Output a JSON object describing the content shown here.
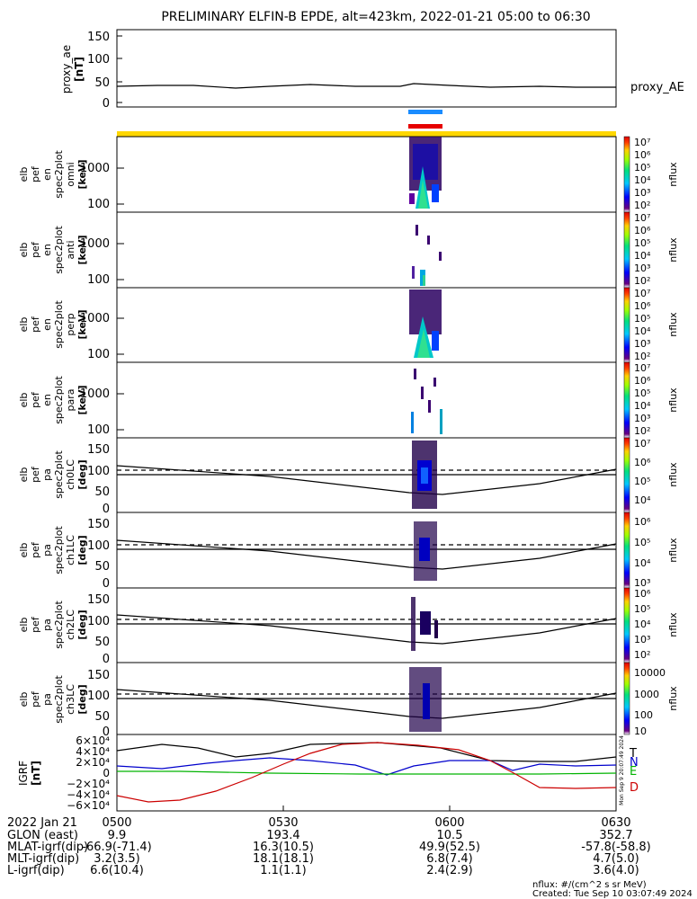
{
  "title": "PRELIMINARY ELFIN-B EPDE, alt=423km, 2022-01-21 05:00 to 06:30",
  "colors": {
    "ae_bar": "#1a8cff",
    "epd_bar": "#e60000",
    "status_bar": "#ffd700",
    "line": "#000000",
    "bfield_T": "#000000",
    "bfield_N": "#0000cc",
    "bfield_E": "#00b300",
    "bfield_D": "#cc0000"
  },
  "panels": {
    "ae": {
      "label": [
        "proxy_ae",
        "[nT]"
      ],
      "series_name": "proxy_AE",
      "ticks": [
        "150",
        "100",
        "50",
        "0"
      ]
    },
    "omni": {
      "label": [
        "elb",
        "pef",
        "en",
        "spec2plot",
        "omni",
        "[keV]"
      ],
      "ticks": [
        "1000",
        "100"
      ]
    },
    "anti": {
      "label": [
        "elb",
        "pef",
        "en",
        "spec2plot",
        "anti",
        "[keV]"
      ],
      "ticks": [
        "1000",
        "100"
      ]
    },
    "perp": {
      "label": [
        "elb",
        "pef",
        "en",
        "spec2plot",
        "perp",
        "[keV]"
      ],
      "ticks": [
        "1000",
        "100"
      ]
    },
    "para": {
      "label": [
        "elb",
        "pef",
        "en",
        "spec2plot",
        "para",
        "[keV]"
      ],
      "ticks": [
        "1000",
        "100"
      ]
    },
    "ch0": {
      "label": [
        "elb",
        "pef",
        "pa",
        "spec2plot",
        "ch0LC",
        "[deg]"
      ],
      "ticks": [
        "150",
        "100",
        "50",
        "0"
      ]
    },
    "ch1": {
      "label": [
        "elb",
        "pef",
        "pa",
        "spec2plot",
        "ch1LC",
        "[deg]"
      ],
      "ticks": [
        "150",
        "100",
        "50",
        "0"
      ]
    },
    "ch2": {
      "label": [
        "elb",
        "pef",
        "pa",
        "spec2plot",
        "ch2LC",
        "[deg]"
      ],
      "ticks": [
        "150",
        "100",
        "50",
        "0"
      ]
    },
    "ch3": {
      "label": [
        "elb",
        "pef",
        "pa",
        "spec2plot",
        "ch3LC",
        "[deg]"
      ],
      "ticks": [
        "150",
        "100",
        "50",
        "0"
      ]
    },
    "igrf": {
      "label": [
        "IGRF",
        "[nT]"
      ],
      "ticks": [
        "6×10⁴",
        "4×10⁴",
        "2×10⁴",
        "0",
        "−2×10⁴",
        "−4×10⁴",
        "−6×10⁴"
      ],
      "components": [
        "T",
        "N",
        "E",
        "D"
      ],
      "side_stamp": "Mon Sep 9 20:07:49 2024"
    }
  },
  "colorbars": {
    "bar1": {
      "unit": "nflux",
      "ticks": [
        "10⁷",
        "10⁶",
        "10⁵",
        "10⁴",
        "10³",
        "10²"
      ]
    },
    "bar2": {
      "unit": "nflux",
      "ticks": [
        "10⁷",
        "10⁶",
        "10⁵",
        "10⁴",
        "10³",
        "10²"
      ]
    },
    "bar3": {
      "unit": "nflux",
      "ticks": [
        "10⁷",
        "10⁶",
        "10⁵",
        "10⁴",
        "10³",
        "10²"
      ]
    },
    "bar4": {
      "unit": "nflux",
      "ticks": [
        "10⁷",
        "10⁶",
        "10⁵",
        "10⁴",
        "10³",
        "10²"
      ]
    },
    "bar5": {
      "unit": "nflux",
      "ticks": [
        "10⁷",
        "10⁶",
        "10⁵",
        "10⁴"
      ]
    },
    "bar6": {
      "unit": "nflux",
      "ticks": [
        "10⁶",
        "10⁵",
        "10⁴",
        "10³"
      ]
    },
    "bar7": {
      "unit": "nflux",
      "ticks": [
        "10⁶",
        "10⁵",
        "10⁴",
        "10³",
        "10²"
      ]
    },
    "bar8": {
      "unit": "nflux",
      "ticks": [
        "10000",
        "1000",
        "100",
        "10"
      ]
    }
  },
  "ephemeris": {
    "rows": [
      {
        "label": "2022 Jan 21",
        "values": [
          "0500",
          "0530",
          "0600",
          "0630"
        ]
      },
      {
        "label": "GLON (east)",
        "values": [
          "9.9",
          "193.4",
          "10.5",
          "352.7"
        ]
      },
      {
        "label": "MLAT-igrf(dip)",
        "values": [
          "-66.9(-71.4)",
          "16.3(10.5)",
          "49.9(52.5)",
          "-57.8(-58.8)"
        ]
      },
      {
        "label": "MLT-igrf(dip)",
        "values": [
          "3.2(3.5)",
          "18.1(18.1)",
          "6.8(7.4)",
          "4.7(5.0)"
        ]
      },
      {
        "label": "L-igrf(dip)",
        "values": [
          "6.6(10.4)",
          "1.1(1.1)",
          "2.4(2.9)",
          "3.6(4.0)"
        ]
      }
    ]
  },
  "footer": {
    "units": "nflux: #/(cm^2 s sr MeV)",
    "created": "Created: Tue Sep 10 03:07:49 2024"
  },
  "chart_data": [
    {
      "type": "line",
      "name": "proxy_ae",
      "x": [
        "05:00",
        "05:10",
        "05:20",
        "05:30",
        "05:40",
        "05:50",
        "06:00",
        "06:10",
        "06:20",
        "06:30"
      ],
      "series": [
        {
          "name": "proxy_AE",
          "values": [
            40,
            43,
            38,
            40,
            42,
            40,
            42,
            40,
            38,
            37
          ]
        }
      ],
      "ylim": [
        0,
        150
      ],
      "ylabel": "proxy_ae [nT]"
    },
    {
      "type": "heatmap",
      "name": "energy spectrograms (omni, anti, perp, para)",
      "x_range": [
        "05:00",
        "06:30"
      ],
      "active_interval": [
        "05:53",
        "05:57"
      ],
      "yticks_keV": [
        100,
        1000
      ],
      "colorscale_range": [
        "10²",
        "10⁷"
      ],
      "unit": "nflux"
    },
    {
      "type": "heatmap",
      "name": "pitch-angle spectrograms (ch0LC-ch3LC)",
      "x_range": [
        "05:00",
        "06:30"
      ],
      "active_interval": [
        "05:53",
        "05:57"
      ],
      "ylim_deg": [
        0,
        180
      ],
      "loss_cone_deg": {
        "05:00": 110,
        "05:55": 68,
        "06:30": 100
      },
      "reference_level_deg": 90
    },
    {
      "type": "line",
      "name": "IGRF",
      "x": [
        "05:00",
        "05:10",
        "05:20",
        "05:30",
        "05:40",
        "05:50",
        "06:00",
        "06:10",
        "06:20",
        "06:30"
      ],
      "series": [
        {
          "name": "T",
          "values": [
            35000,
            45000,
            36000,
            26000,
            40000,
            50000,
            47000,
            33000,
            22000,
            30000
          ]
        },
        {
          "name": "N",
          "values": [
            18000,
            10000,
            20000,
            27000,
            12000,
            2000,
            18000,
            27000,
            15000,
            14000
          ]
        },
        {
          "name": "E",
          "values": [
            5000,
            3000,
            2000,
            2000,
            2000,
            1500,
            1500,
            2000,
            2000,
            3000
          ]
        },
        {
          "name": "D",
          "values": [
            -25000,
            -45000,
            -30000,
            10000,
            40000,
            50000,
            42000,
            10000,
            -18000,
            -22000
          ]
        }
      ],
      "ylim": [
        -60000,
        60000
      ],
      "ylabel": "IGRF [nT]"
    }
  ]
}
